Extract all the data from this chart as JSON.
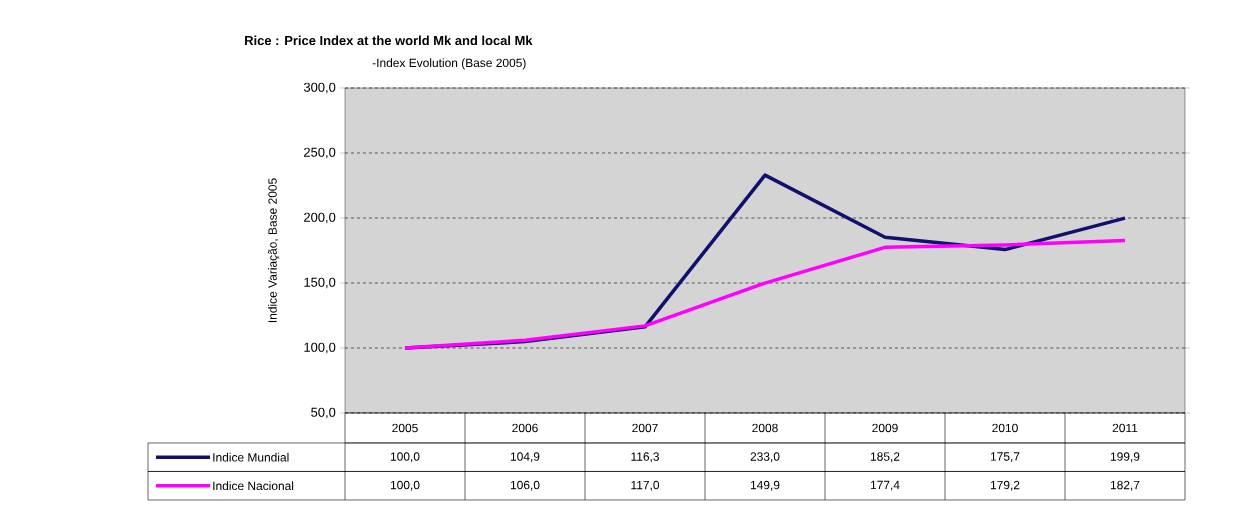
{
  "chart_data": {
    "type": "line",
    "title": "Rice : Price Index at the world  Mk and local Mk",
    "subtitle": "-Index Evolution  (Base 2005)",
    "ylabel": "Indice Variação, Base  2005",
    "categories": [
      "2005",
      "2006",
      "2007",
      "2008",
      "2009",
      "2010",
      "2011"
    ],
    "series": [
      {
        "name": "Indice Mundial",
        "color": "#10106e",
        "values": [
          100.0,
          104.9,
          116.3,
          233.0,
          185.2,
          175.7,
          199.9
        ],
        "value_labels": [
          "100,0",
          "104,9",
          "116,3",
          "233,0",
          "185,2",
          "175,7",
          "199,9"
        ]
      },
      {
        "name": "Indice Nacional",
        "color": "#ff00ff",
        "values": [
          100.0,
          106.0,
          117.0,
          149.9,
          177.4,
          179.2,
          182.7
        ],
        "value_labels": [
          "100,0",
          "106,0",
          "117,0",
          "149,9",
          "177,4",
          "179,2",
          "182,7"
        ]
      }
    ],
    "ylim": [
      50,
      300
    ],
    "yticks": [
      {
        "value": 50,
        "label": "50,0"
      },
      {
        "value": 100,
        "label": "100,0"
      },
      {
        "value": 150,
        "label": "150,0"
      },
      {
        "value": 200,
        "label": "200,0"
      },
      {
        "value": 250,
        "label": "250,0"
      },
      {
        "value": 300,
        "label": "300,0"
      }
    ],
    "grid": "y",
    "legend": "bottom",
    "marker": "none",
    "line_style": "solid"
  }
}
